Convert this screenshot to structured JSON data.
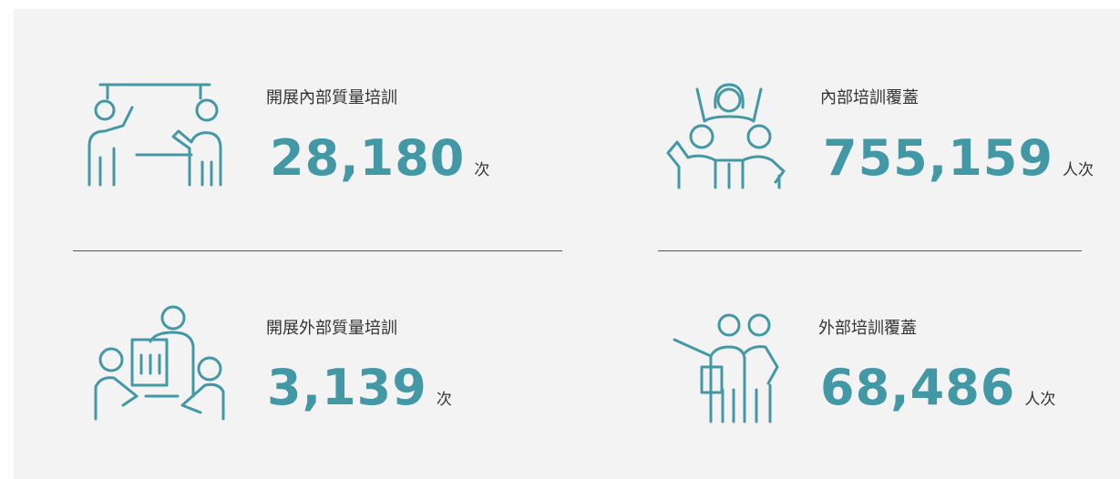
{
  "items": [
    {
      "label": "開展內部質量培訓",
      "value": "28,180",
      "unit": "次"
    },
    {
      "label": "內部培訓覆蓋",
      "value": "755,159",
      "unit": "人次"
    },
    {
      "label": "開展外部質量培訓",
      "value": "3,139",
      "unit": "次"
    },
    {
      "label": "外部培訓覆蓋",
      "value": "68,486",
      "unit": "人次"
    }
  ]
}
